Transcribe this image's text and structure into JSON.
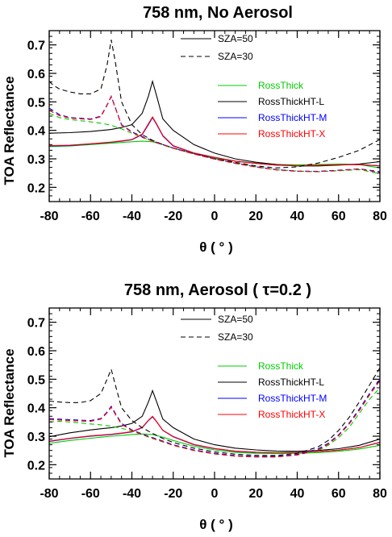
{
  "chart_data": [
    {
      "type": "line",
      "title": "758 nm, No Aerosol",
      "xlabel": "θ ( ° )",
      "ylabel": "TOA Reflectance",
      "xlim": [
        -80,
        80
      ],
      "ylim": [
        0.15,
        0.75
      ],
      "xticks": [
        "-80",
        "-60",
        "-40",
        "-20",
        "0",
        "20",
        "40",
        "60",
        "80"
      ],
      "yticks": [
        "0.2",
        "0.3",
        "0.4",
        "0.5",
        "0.6",
        "0.7"
      ],
      "legend_sza": [
        {
          "label": "SZA=50",
          "style": "solid"
        },
        {
          "label": "SZA=30",
          "style": "dashed"
        }
      ],
      "legend_models": [
        {
          "label": "RossThick",
          "color": "#00cc00"
        },
        {
          "label": "RossThickHT-L",
          "color": "#000000"
        },
        {
          "label": "RossThickHT-M",
          "color": "#0000ff"
        },
        {
          "label": "RossThickHT-X",
          "color": "#ff0000"
        }
      ],
      "series": [
        {
          "model": "RossThick",
          "sza": 50,
          "color": "#00cc00",
          "dash": false,
          "x": [
            -80,
            -70,
            -60,
            -50,
            -40,
            -35,
            -30,
            -25,
            -20,
            -10,
            0,
            10,
            20,
            30,
            40,
            50,
            60,
            70,
            80
          ],
          "y": [
            0.343,
            0.345,
            0.35,
            0.355,
            0.36,
            0.362,
            0.36,
            0.35,
            0.337,
            0.318,
            0.302,
            0.292,
            0.285,
            0.28,
            0.279,
            0.28,
            0.282,
            0.28,
            0.268
          ]
        },
        {
          "model": "RossThickHT-L",
          "sza": 50,
          "color": "#000000",
          "dash": false,
          "x": [
            -80,
            -70,
            -60,
            -50,
            -45,
            -40,
            -35,
            -32,
            -30,
            -28,
            -25,
            -20,
            -10,
            0,
            10,
            20,
            30,
            40,
            50,
            60,
            70,
            80
          ],
          "y": [
            0.39,
            0.392,
            0.396,
            0.403,
            0.41,
            0.42,
            0.46,
            0.52,
            0.572,
            0.52,
            0.44,
            0.4,
            0.35,
            0.32,
            0.3,
            0.288,
            0.28,
            0.275,
            0.275,
            0.278,
            0.282,
            0.29
          ]
        },
        {
          "model": "RossThickHT-M",
          "sza": 50,
          "color": "#0000ff",
          "dash": false,
          "x": [
            -80,
            -70,
            -60,
            -50,
            -45,
            -40,
            -35,
            -32,
            -30,
            -28,
            -25,
            -20,
            -10,
            0,
            10,
            20,
            30,
            40,
            50,
            60,
            70,
            80
          ],
          "y": [
            0.345,
            0.347,
            0.352,
            0.358,
            0.362,
            0.367,
            0.385,
            0.42,
            0.445,
            0.42,
            0.38,
            0.345,
            0.32,
            0.305,
            0.292,
            0.284,
            0.278,
            0.276,
            0.277,
            0.279,
            0.28,
            0.275
          ]
        },
        {
          "model": "RossThickHT-X",
          "sza": 50,
          "color": "#ff0000",
          "dash": false,
          "x": [
            -80,
            -70,
            -60,
            -50,
            -45,
            -40,
            -35,
            -32,
            -30,
            -28,
            -25,
            -20,
            -10,
            0,
            10,
            20,
            30,
            40,
            50,
            60,
            70,
            80
          ],
          "y": [
            0.346,
            0.348,
            0.353,
            0.359,
            0.363,
            0.368,
            0.387,
            0.423,
            0.447,
            0.422,
            0.382,
            0.346,
            0.321,
            0.305,
            0.292,
            0.284,
            0.278,
            0.276,
            0.277,
            0.279,
            0.28,
            0.276
          ]
        },
        {
          "model": "RossThick",
          "sza": 30,
          "color": "#00cc00",
          "dash": true,
          "x": [
            -80,
            -75,
            -70,
            -60,
            -55,
            -50,
            -45,
            -40,
            -35,
            -30,
            -25,
            -20,
            -10,
            0,
            10,
            20,
            30,
            40,
            50,
            60,
            70,
            80
          ],
          "y": [
            0.46,
            0.445,
            0.438,
            0.43,
            0.425,
            0.418,
            0.405,
            0.39,
            0.375,
            0.362,
            0.35,
            0.338,
            0.318,
            0.3,
            0.285,
            0.272,
            0.262,
            0.257,
            0.255,
            0.258,
            0.262,
            0.248
          ]
        },
        {
          "model": "RossThickHT-L",
          "sza": 30,
          "color": "#000000",
          "dash": true,
          "x": [
            -80,
            -78,
            -75,
            -70,
            -65,
            -60,
            -55,
            -52,
            -50,
            -48,
            -45,
            -40,
            -35,
            -30,
            -25,
            -20,
            -10,
            0,
            10,
            20,
            30,
            40,
            50,
            60,
            70,
            80
          ],
          "y": [
            0.572,
            0.558,
            0.545,
            0.535,
            0.528,
            0.528,
            0.545,
            0.63,
            0.718,
            0.64,
            0.5,
            0.42,
            0.385,
            0.365,
            0.35,
            0.338,
            0.318,
            0.3,
            0.288,
            0.275,
            0.268,
            0.272,
            0.285,
            0.305,
            0.33,
            0.368
          ]
        },
        {
          "model": "RossThickHT-M",
          "sza": 30,
          "color": "#0000ff",
          "dash": true,
          "x": [
            -80,
            -75,
            -70,
            -60,
            -55,
            -52,
            -50,
            -48,
            -45,
            -40,
            -35,
            -30,
            -25,
            -20,
            -10,
            0,
            10,
            20,
            30,
            40,
            50,
            60,
            70,
            80
          ],
          "y": [
            0.478,
            0.455,
            0.445,
            0.44,
            0.45,
            0.49,
            0.52,
            0.48,
            0.42,
            0.395,
            0.378,
            0.363,
            0.35,
            0.338,
            0.318,
            0.3,
            0.285,
            0.272,
            0.262,
            0.257,
            0.256,
            0.26,
            0.265,
            0.255
          ]
        },
        {
          "model": "RossThickHT-X",
          "sza": 30,
          "color": "#ff0000",
          "dash": true,
          "x": [
            -80,
            -75,
            -70,
            -60,
            -55,
            -52,
            -50,
            -48,
            -45,
            -40,
            -35,
            -30,
            -25,
            -20,
            -10,
            0,
            10,
            20,
            30,
            40,
            50,
            60,
            70,
            80
          ],
          "y": [
            0.47,
            0.452,
            0.443,
            0.438,
            0.448,
            0.488,
            0.518,
            0.478,
            0.418,
            0.393,
            0.376,
            0.362,
            0.349,
            0.337,
            0.317,
            0.299,
            0.284,
            0.271,
            0.261,
            0.256,
            0.255,
            0.259,
            0.264,
            0.252
          ]
        }
      ]
    },
    {
      "type": "line",
      "title": "758 nm, Aerosol ( τ=0.2 )",
      "xlabel": "θ ( ° )",
      "ylabel": "TOA Reflectance",
      "xlim": [
        -80,
        80
      ],
      "ylim": [
        0.15,
        0.75
      ],
      "xticks": [
        "-80",
        "-60",
        "-40",
        "-20",
        "0",
        "20",
        "40",
        "60",
        "80"
      ],
      "yticks": [
        "0.2",
        "0.3",
        "0.4",
        "0.5",
        "0.6",
        "0.7"
      ],
      "legend_sza": [
        {
          "label": "SZA=50",
          "style": "solid"
        },
        {
          "label": "SZA=30",
          "style": "dashed"
        }
      ],
      "legend_models": [
        {
          "label": "RossThick",
          "color": "#00cc00"
        },
        {
          "label": "RossThickHT-L",
          "color": "#000000"
        },
        {
          "label": "RossThickHT-M",
          "color": "#0000ff"
        },
        {
          "label": "RossThickHT-X",
          "color": "#ff0000"
        }
      ],
      "series": [
        {
          "model": "RossThick",
          "sza": 50,
          "color": "#00cc00",
          "dash": false,
          "x": [
            -80,
            -70,
            -60,
            -50,
            -40,
            -35,
            -30,
            -25,
            -20,
            -10,
            0,
            10,
            20,
            30,
            40,
            50,
            60,
            70,
            80
          ],
          "y": [
            0.275,
            0.285,
            0.293,
            0.3,
            0.306,
            0.308,
            0.306,
            0.297,
            0.285,
            0.265,
            0.252,
            0.243,
            0.24,
            0.239,
            0.24,
            0.242,
            0.247,
            0.255,
            0.268
          ]
        },
        {
          "model": "RossThickHT-L",
          "sza": 50,
          "color": "#000000",
          "dash": false,
          "x": [
            -80,
            -70,
            -60,
            -50,
            -45,
            -40,
            -35,
            -32,
            -30,
            -28,
            -25,
            -20,
            -10,
            0,
            10,
            20,
            30,
            40,
            50,
            60,
            70,
            80
          ],
          "y": [
            0.298,
            0.312,
            0.322,
            0.33,
            0.336,
            0.345,
            0.37,
            0.42,
            0.46,
            0.42,
            0.36,
            0.33,
            0.29,
            0.27,
            0.258,
            0.252,
            0.248,
            0.247,
            0.25,
            0.256,
            0.268,
            0.29
          ]
        },
        {
          "model": "RossThickHT-M",
          "sza": 50,
          "color": "#0000ff",
          "dash": false,
          "x": [
            -80,
            -70,
            -60,
            -50,
            -45,
            -40,
            -35,
            -32,
            -30,
            -28,
            -25,
            -20,
            -10,
            0,
            10,
            20,
            30,
            40,
            50,
            60,
            70,
            80
          ],
          "y": [
            0.282,
            0.292,
            0.3,
            0.306,
            0.31,
            0.315,
            0.33,
            0.355,
            0.368,
            0.35,
            0.32,
            0.298,
            0.27,
            0.256,
            0.247,
            0.243,
            0.242,
            0.243,
            0.246,
            0.251,
            0.26,
            0.278
          ]
        },
        {
          "model": "RossThickHT-X",
          "sza": 50,
          "color": "#ff0000",
          "dash": false,
          "x": [
            -80,
            -70,
            -60,
            -50,
            -45,
            -40,
            -35,
            -32,
            -30,
            -28,
            -25,
            -20,
            -10,
            0,
            10,
            20,
            30,
            40,
            50,
            60,
            70,
            80
          ],
          "y": [
            0.283,
            0.293,
            0.301,
            0.307,
            0.311,
            0.316,
            0.331,
            0.356,
            0.37,
            0.351,
            0.321,
            0.299,
            0.271,
            0.257,
            0.248,
            0.244,
            0.242,
            0.243,
            0.246,
            0.251,
            0.26,
            0.279
          ]
        },
        {
          "model": "RossThick",
          "sza": 30,
          "color": "#00cc00",
          "dash": true,
          "x": [
            -80,
            -75,
            -70,
            -60,
            -55,
            -50,
            -45,
            -40,
            -35,
            -30,
            -25,
            -20,
            -10,
            0,
            10,
            20,
            30,
            40,
            50,
            55,
            60,
            65,
            70,
            75,
            80
          ],
          "y": [
            0.35,
            0.352,
            0.35,
            0.343,
            0.34,
            0.335,
            0.328,
            0.318,
            0.305,
            0.292,
            0.28,
            0.268,
            0.25,
            0.238,
            0.23,
            0.228,
            0.228,
            0.234,
            0.25,
            0.268,
            0.295,
            0.33,
            0.38,
            0.43,
            0.47
          ]
        },
        {
          "model": "RossThickHT-L",
          "sza": 30,
          "color": "#000000",
          "dash": true,
          "x": [
            -80,
            -75,
            -70,
            -65,
            -60,
            -55,
            -52,
            -50,
            -48,
            -45,
            -40,
            -35,
            -30,
            -25,
            -20,
            -10,
            0,
            10,
            20,
            30,
            40,
            50,
            55,
            60,
            65,
            70,
            75,
            80
          ],
          "y": [
            0.423,
            0.42,
            0.418,
            0.418,
            0.425,
            0.45,
            0.5,
            0.535,
            0.48,
            0.4,
            0.355,
            0.33,
            0.31,
            0.292,
            0.278,
            0.258,
            0.245,
            0.237,
            0.233,
            0.232,
            0.24,
            0.262,
            0.285,
            0.32,
            0.365,
            0.42,
            0.48,
            0.54
          ]
        },
        {
          "model": "RossThickHT-M",
          "sza": 30,
          "color": "#0000ff",
          "dash": true,
          "x": [
            -80,
            -75,
            -70,
            -60,
            -55,
            -52,
            -50,
            -48,
            -45,
            -40,
            -35,
            -30,
            -25,
            -20,
            -10,
            0,
            10,
            20,
            30,
            40,
            50,
            55,
            60,
            65,
            70,
            75,
            80
          ],
          "y": [
            0.362,
            0.36,
            0.358,
            0.355,
            0.362,
            0.385,
            0.405,
            0.38,
            0.345,
            0.322,
            0.308,
            0.295,
            0.283,
            0.27,
            0.252,
            0.24,
            0.232,
            0.229,
            0.229,
            0.236,
            0.255,
            0.275,
            0.305,
            0.345,
            0.395,
            0.45,
            0.5
          ]
        },
        {
          "model": "RossThickHT-X",
          "sza": 30,
          "color": "#ff0000",
          "dash": true,
          "x": [
            -80,
            -75,
            -70,
            -60,
            -55,
            -52,
            -50,
            -48,
            -45,
            -40,
            -35,
            -30,
            -25,
            -20,
            -10,
            0,
            10,
            20,
            30,
            40,
            50,
            55,
            60,
            65,
            70,
            75,
            80
          ],
          "y": [
            0.358,
            0.357,
            0.355,
            0.352,
            0.36,
            0.382,
            0.402,
            0.377,
            0.342,
            0.32,
            0.306,
            0.293,
            0.281,
            0.268,
            0.25,
            0.238,
            0.23,
            0.227,
            0.227,
            0.234,
            0.252,
            0.272,
            0.302,
            0.342,
            0.39,
            0.445,
            0.495
          ]
        }
      ]
    }
  ]
}
